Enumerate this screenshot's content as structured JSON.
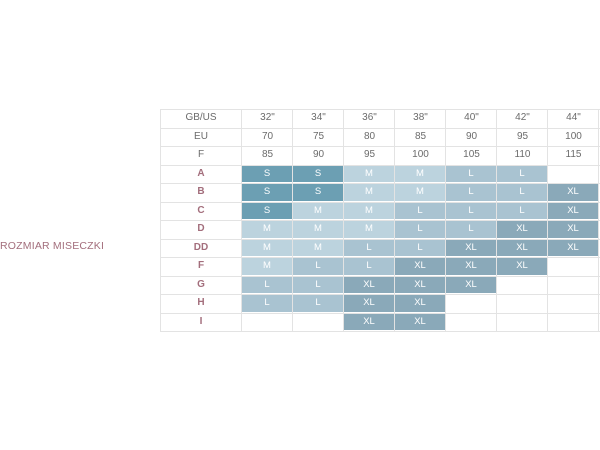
{
  "side_label": "ROZMIAR MISECZKI",
  "header_rows": [
    {
      "label": "GB/US",
      "values": [
        "32\"",
        "34\"",
        "36\"",
        "38\"",
        "40\"",
        "42\"",
        "44\""
      ]
    },
    {
      "label": "EU",
      "values": [
        "70",
        "75",
        "80",
        "85",
        "90",
        "95",
        "100"
      ]
    },
    {
      "label": "F",
      "values": [
        "85",
        "90",
        "95",
        "100",
        "105",
        "110",
        "115"
      ]
    }
  ],
  "cup_rows": [
    {
      "label": "A",
      "cells": [
        "S",
        "S",
        "M",
        "M",
        "L",
        "L",
        ""
      ]
    },
    {
      "label": "B",
      "cells": [
        "S",
        "S",
        "M",
        "M",
        "L",
        "L",
        "XL"
      ]
    },
    {
      "label": "C",
      "cells": [
        "S",
        "M",
        "M",
        "L",
        "L",
        "L",
        "XL"
      ]
    },
    {
      "label": "D",
      "cells": [
        "M",
        "M",
        "M",
        "L",
        "L",
        "XL",
        "XL"
      ]
    },
    {
      "label": "DD",
      "cells": [
        "M",
        "M",
        "L",
        "L",
        "XL",
        "XL",
        "XL"
      ]
    },
    {
      "label": "F",
      "cells": [
        "M",
        "L",
        "L",
        "XL",
        "XL",
        "XL",
        ""
      ]
    },
    {
      "label": "G",
      "cells": [
        "L",
        "L",
        "XL",
        "XL",
        "XL",
        "",
        ""
      ]
    },
    {
      "label": "H",
      "cells": [
        "L",
        "L",
        "XL",
        "XL",
        "",
        "",
        ""
      ]
    },
    {
      "label": "I",
      "cells": [
        "",
        "",
        "XL",
        "XL",
        "",
        "",
        ""
      ]
    }
  ],
  "size_colors": {
    "S": "#6c9fb3",
    "M": "#bcd3de",
    "L": "#a9c3d1",
    "XL": "#8aa9b9"
  }
}
